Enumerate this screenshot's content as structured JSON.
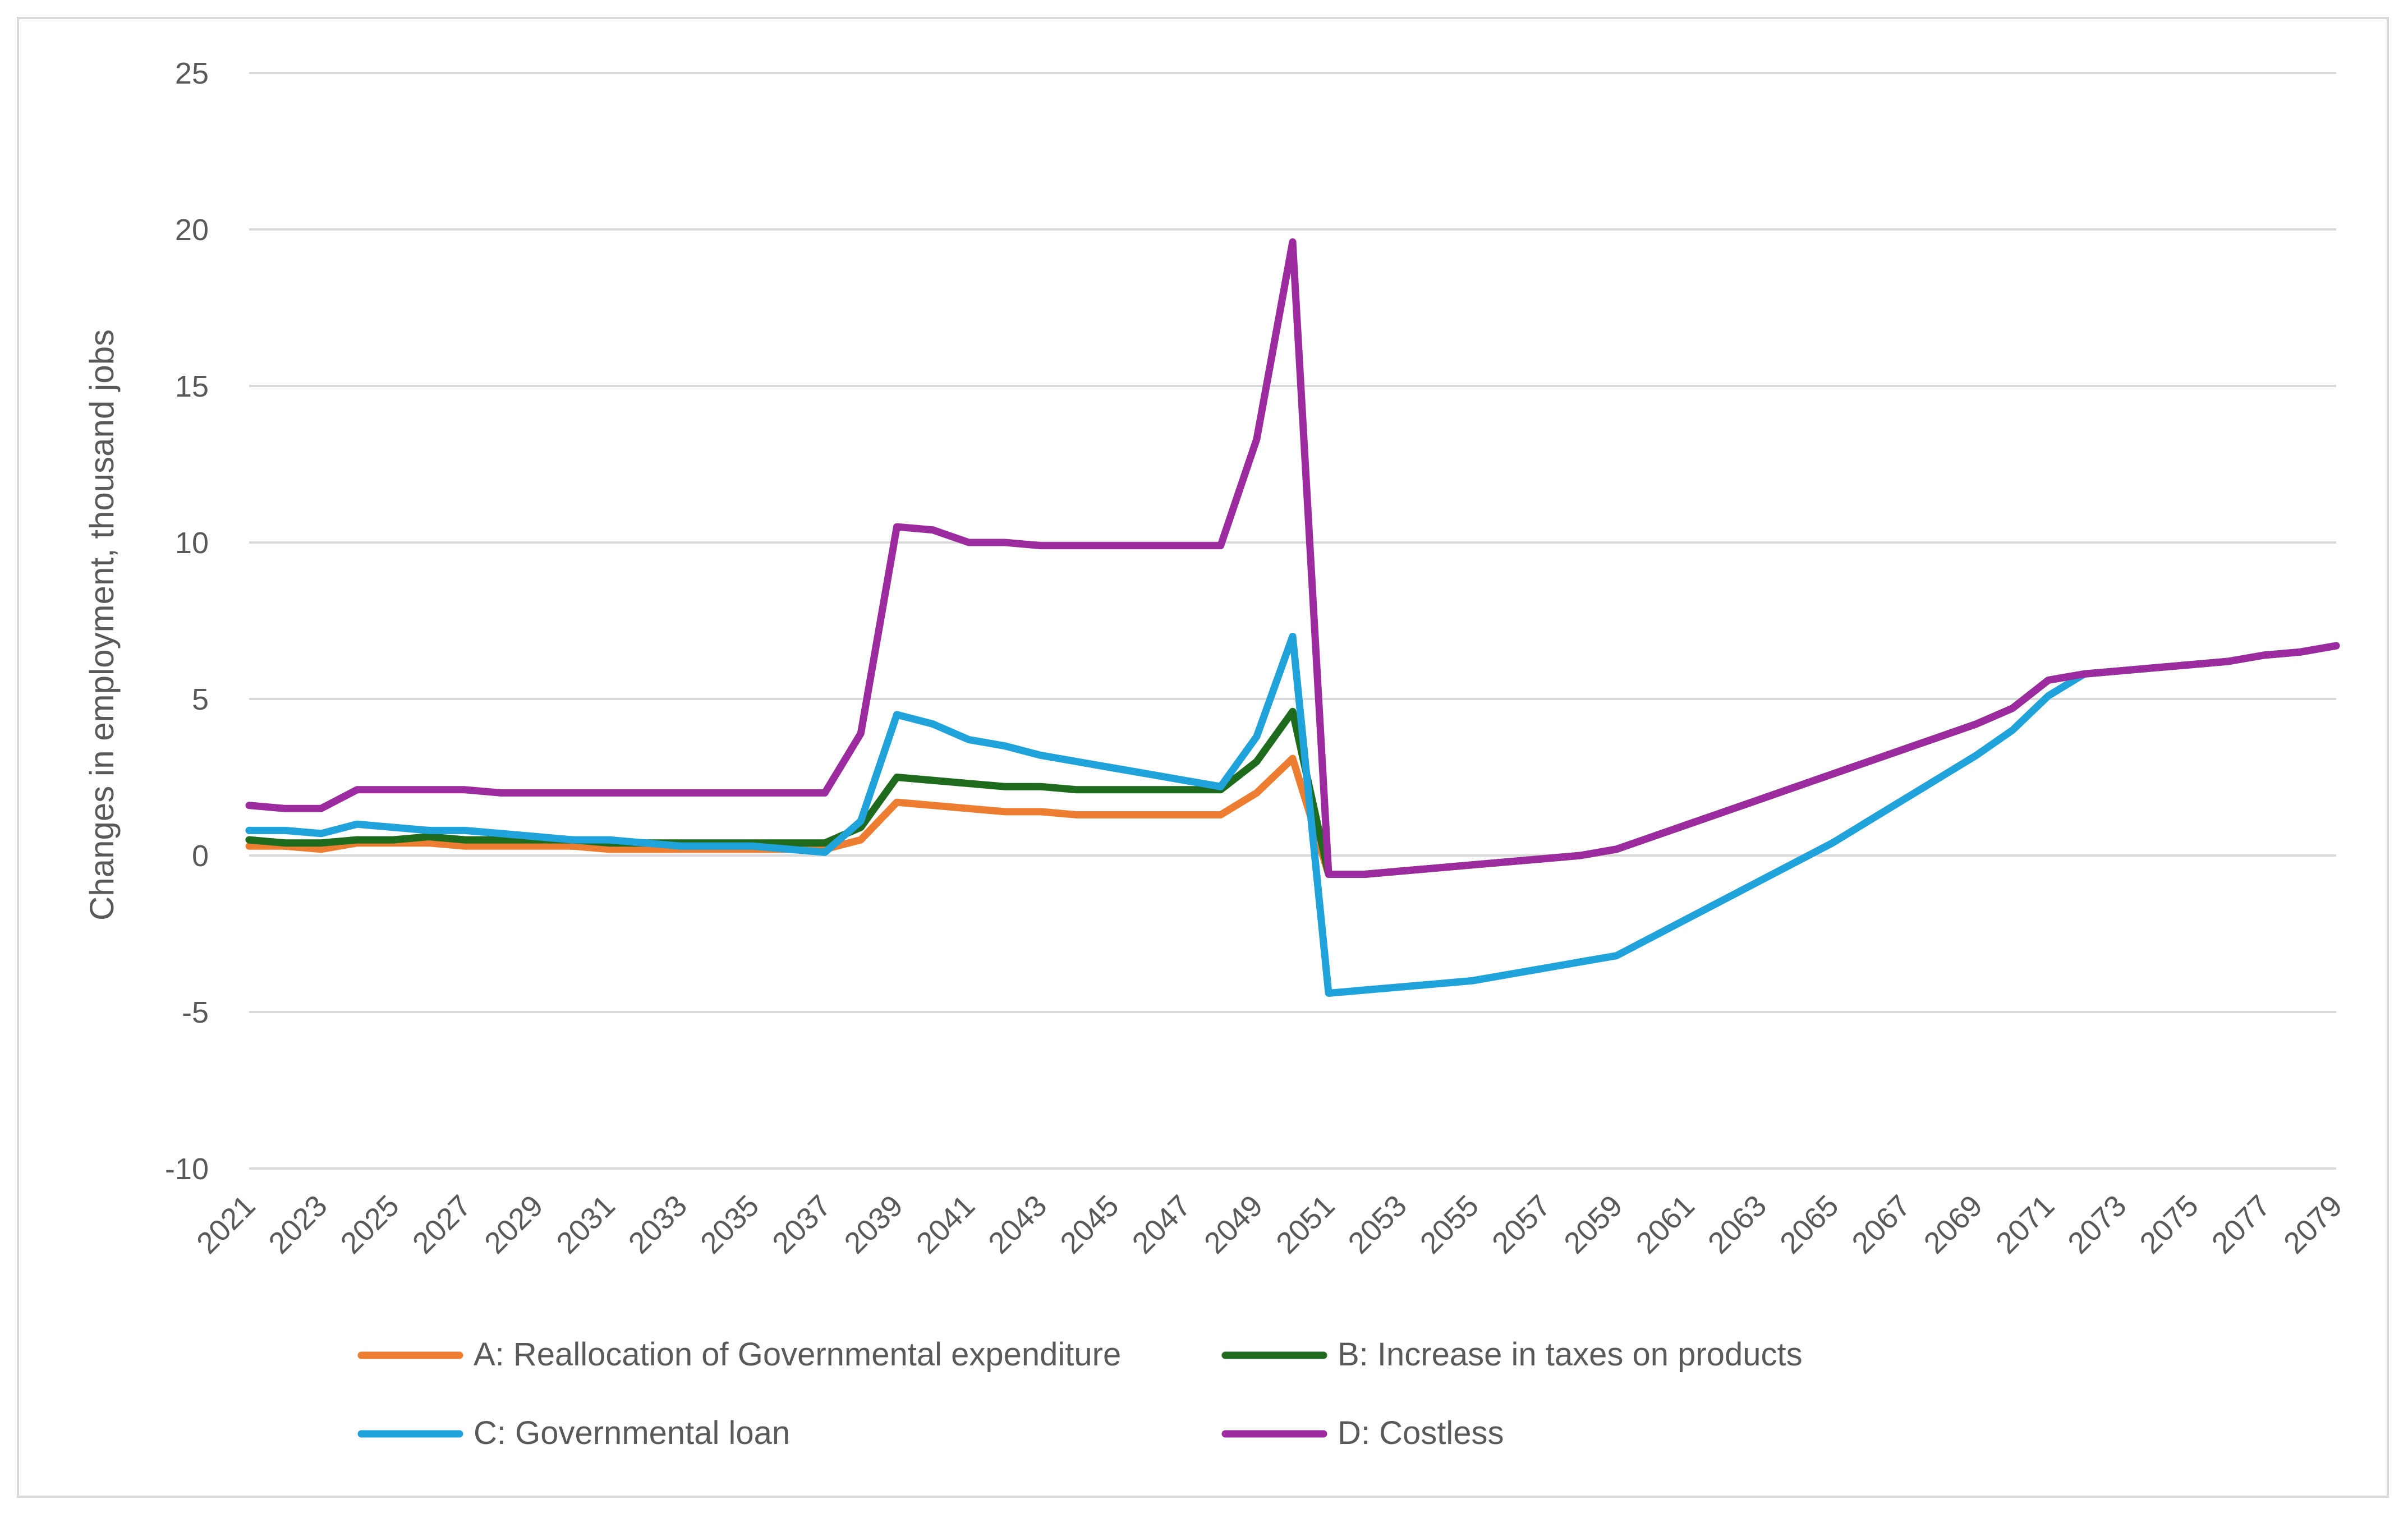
{
  "chart_data": {
    "type": "line",
    "title": "",
    "xlabel": "",
    "ylabel": "Changes in employment, thousand jobs",
    "ylim": [
      -10,
      25
    ],
    "yticks": [
      25,
      20,
      15,
      10,
      5,
      0,
      -5,
      -10
    ],
    "grid": true,
    "legend_position": "bottom",
    "x": [
      2021,
      2022,
      2023,
      2024,
      2025,
      2026,
      2027,
      2028,
      2029,
      2030,
      2031,
      2032,
      2033,
      2034,
      2035,
      2036,
      2037,
      2038,
      2039,
      2040,
      2041,
      2042,
      2043,
      2044,
      2045,
      2046,
      2047,
      2048,
      2049,
      2050,
      2051,
      2052,
      2053,
      2054,
      2055,
      2056,
      2057,
      2058,
      2059,
      2060,
      2061,
      2062,
      2063,
      2064,
      2065,
      2066,
      2067,
      2068,
      2069,
      2070,
      2071,
      2072,
      2073,
      2074,
      2075,
      2076,
      2077,
      2078,
      2079
    ],
    "xtick_labels": [
      "2021",
      "2023",
      "2025",
      "2027",
      "2029",
      "2031",
      "2033",
      "2035",
      "2037",
      "2039",
      "2041",
      "2043",
      "2045",
      "2047",
      "2049",
      "2051",
      "2053",
      "2055",
      "2057",
      "2059",
      "2061",
      "2063",
      "2065",
      "2067",
      "2069",
      "2071",
      "2073",
      "2075",
      "2077",
      "2079"
    ],
    "series": [
      {
        "name": "A: Reallocation of Governmental expenditure",
        "color": "#ED7D31",
        "values": [
          0.3,
          0.3,
          0.2,
          0.4,
          0.4,
          0.4,
          0.3,
          0.3,
          0.3,
          0.3,
          0.2,
          0.2,
          0.2,
          0.2,
          0.2,
          0.2,
          0.2,
          0.5,
          1.7,
          1.6,
          1.5,
          1.4,
          1.4,
          1.3,
          1.3,
          1.3,
          1.3,
          1.3,
          2.0,
          3.1,
          -0.6,
          -0.6,
          -0.5,
          -0.4,
          -0.3,
          -0.2,
          -0.1,
          0.0,
          0.2,
          0.6,
          1.0,
          1.4,
          1.8,
          2.2,
          2.6,
          3.0,
          3.4,
          3.8,
          4.2,
          4.7,
          5.6,
          5.8,
          5.9,
          6.0,
          6.1,
          6.2,
          6.4,
          6.5,
          6.7
        ]
      },
      {
        "name": "B: Increase in taxes on products",
        "color": "#1E6B1E",
        "values": [
          0.5,
          0.4,
          0.4,
          0.5,
          0.5,
          0.6,
          0.5,
          0.5,
          0.5,
          0.5,
          0.4,
          0.4,
          0.4,
          0.4,
          0.4,
          0.4,
          0.4,
          0.9,
          2.5,
          2.4,
          2.3,
          2.2,
          2.2,
          2.1,
          2.1,
          2.1,
          2.1,
          2.1,
          3.0,
          4.6,
          -0.6,
          -0.6,
          -0.5,
          -0.4,
          -0.3,
          -0.2,
          -0.1,
          0.0,
          0.2,
          0.6,
          1.0,
          1.4,
          1.8,
          2.2,
          2.6,
          3.0,
          3.4,
          3.8,
          4.2,
          4.7,
          5.6,
          5.8,
          5.9,
          6.0,
          6.1,
          6.2,
          6.4,
          6.5,
          6.7
        ]
      },
      {
        "name": "C: Governmental loan",
        "color": "#1FA3DA",
        "values": [
          0.8,
          0.8,
          0.7,
          1.0,
          0.9,
          0.8,
          0.8,
          0.7,
          0.6,
          0.5,
          0.5,
          0.4,
          0.3,
          0.3,
          0.3,
          0.2,
          0.1,
          1.1,
          4.5,
          4.2,
          3.7,
          3.5,
          3.2,
          3.0,
          2.8,
          2.6,
          2.4,
          2.2,
          3.8,
          7.0,
          -4.4,
          -4.3,
          -4.2,
          -4.1,
          -4.0,
          -3.8,
          -3.6,
          -3.4,
          -3.2,
          -2.6,
          -2.0,
          -1.4,
          -0.8,
          -0.2,
          0.4,
          1.1,
          1.8,
          2.5,
          3.2,
          4.0,
          5.1,
          5.8,
          5.9,
          6.0,
          6.1,
          6.2,
          6.4,
          6.5,
          6.7
        ]
      },
      {
        "name": "D: Costless",
        "color": "#9B2B9E",
        "values": [
          1.6,
          1.5,
          1.5,
          2.1,
          2.1,
          2.1,
          2.1,
          2.0,
          2.0,
          2.0,
          2.0,
          2.0,
          2.0,
          2.0,
          2.0,
          2.0,
          2.0,
          3.9,
          10.5,
          10.4,
          10.0,
          10.0,
          9.9,
          9.9,
          9.9,
          9.9,
          9.9,
          9.9,
          13.3,
          19.6,
          -0.6,
          -0.6,
          -0.5,
          -0.4,
          -0.3,
          -0.2,
          -0.1,
          0.0,
          0.2,
          0.6,
          1.0,
          1.4,
          1.8,
          2.2,
          2.6,
          3.0,
          3.4,
          3.8,
          4.2,
          4.7,
          5.6,
          5.8,
          5.9,
          6.0,
          6.1,
          6.2,
          6.4,
          6.5,
          6.7
        ]
      }
    ]
  }
}
